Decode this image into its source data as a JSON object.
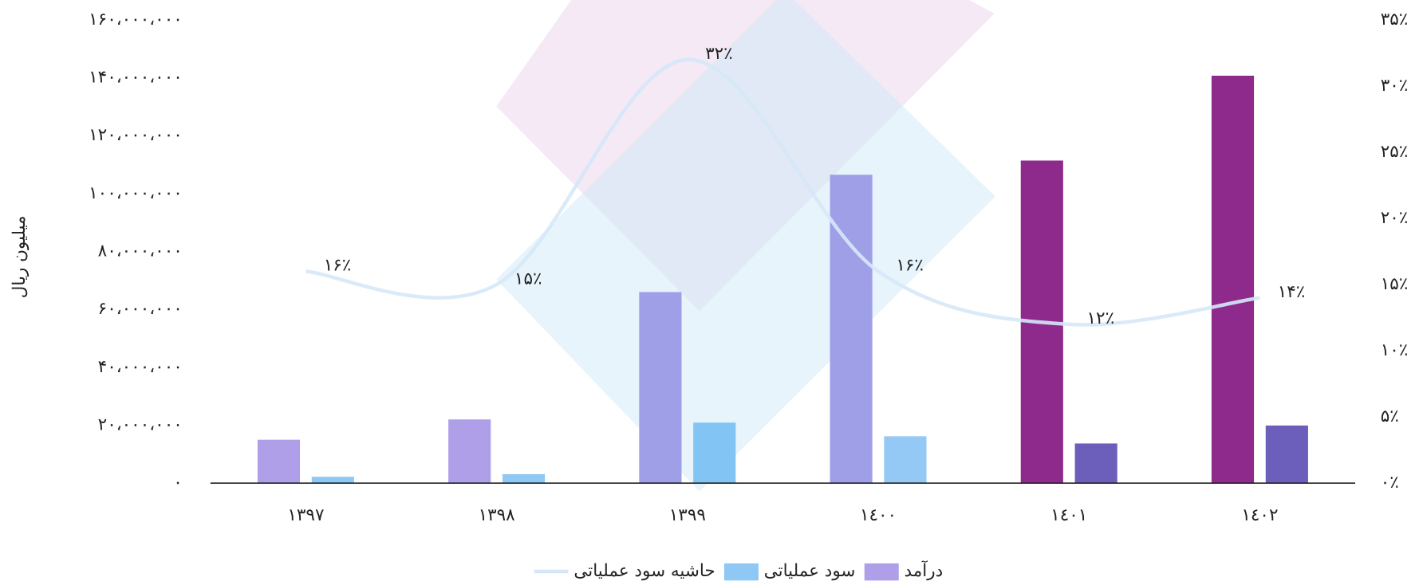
{
  "chart_data": {
    "type": "bar",
    "y_axis_label": "میلیون ریال",
    "categories": [
      "۱۳۹۷",
      "۱۳۹۸",
      "۱۳۹۹",
      "١٤٠٠",
      "١٤٠١",
      "١٤٠٢"
    ],
    "series": [
      {
        "name": "درآمد",
        "type": "bar",
        "color": "#ae9fe8",
        "colors": [
          "#ae9fe8",
          "#ae9fe8",
          "#9f9fe8",
          "#9f9fe8",
          "#8e2a8b",
          "#8e2a8b"
        ],
        "values": [
          15000000,
          22000000,
          66000000,
          106500000,
          111400000,
          140700000
        ]
      },
      {
        "name": "سود عملیاتی",
        "type": "bar",
        "color": "#8fc8f5",
        "colors": [
          "#8fc8f5",
          "#8fc8f5",
          "#82c4f3",
          "#95c9f5",
          "#6b5fbb",
          "#6b5fbb"
        ],
        "values": [
          2200000,
          3100000,
          20900000,
          16200000,
          13700000,
          19900000
        ]
      },
      {
        "name": "حاشیه سود عملیاتی",
        "type": "line",
        "axis": "y2",
        "color": "#d6e8f8",
        "values": [
          16,
          15,
          32,
          16,
          12,
          14
        ],
        "value_labels": [
          "۱۶٪",
          "۱۵٪",
          "۳۲٪",
          "۱۶٪",
          "۱۲٪",
          "۱۴٪"
        ]
      }
    ],
    "ylim": [
      0,
      160000000
    ],
    "yticks": [
      {
        "value": 0,
        "label": "۰"
      },
      {
        "value": 20000000,
        "label": "۲۰،۰۰۰،۰۰۰"
      },
      {
        "value": 40000000,
        "label": "۴۰،۰۰۰،۰۰۰"
      },
      {
        "value": 60000000,
        "label": "۶۰،۰۰۰،۰۰۰"
      },
      {
        "value": 80000000,
        "label": "۸۰،۰۰۰،۰۰۰"
      },
      {
        "value": 100000000,
        "label": "۱۰۰،۰۰۰،۰۰۰"
      },
      {
        "value": 120000000,
        "label": "۱۲۰،۰۰۰،۰۰۰"
      },
      {
        "value": 140000000,
        "label": "۱۴۰،۰۰۰،۰۰۰"
      },
      {
        "value": 160000000,
        "label": "۱۶۰،۰۰۰،۰۰۰"
      }
    ],
    "y2lim": [
      0,
      35
    ],
    "y2ticks": [
      {
        "value": 0,
        "label": "۰٪"
      },
      {
        "value": 5,
        "label": "۵٪"
      },
      {
        "value": 10,
        "label": "۱۰٪"
      },
      {
        "value": 15,
        "label": "۱۵٪"
      },
      {
        "value": 20,
        "label": "۲۰٪"
      },
      {
        "value": 25,
        "label": "۲۵٪"
      },
      {
        "value": 30,
        "label": "۳۰٪"
      },
      {
        "value": 35,
        "label": "۳۵٪"
      }
    ],
    "grid": false,
    "legend": "bottom"
  }
}
